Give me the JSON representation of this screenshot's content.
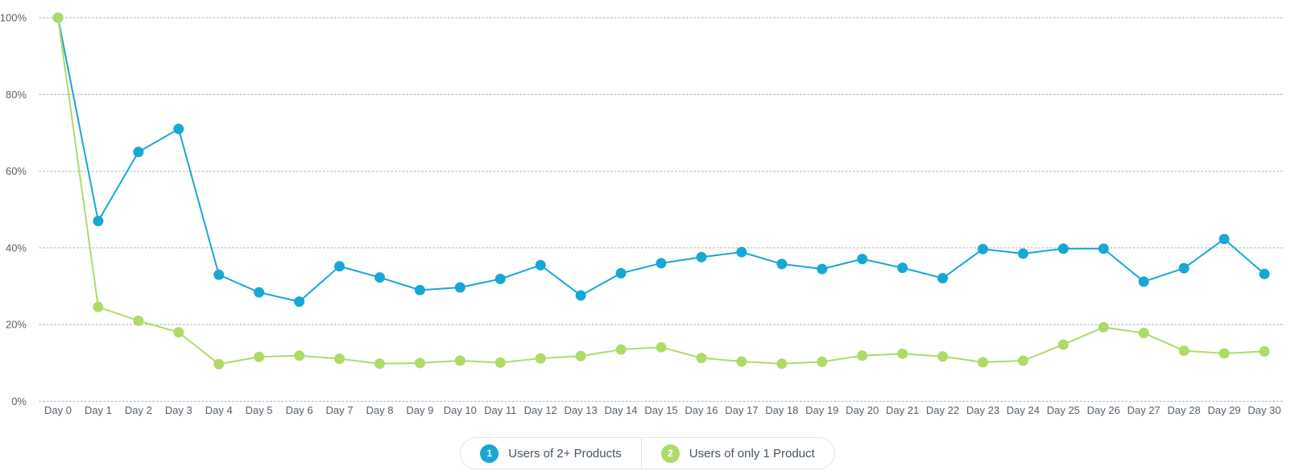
{
  "chart_data": {
    "type": "line",
    "title": "",
    "xlabel": "",
    "ylabel": "",
    "ylim": [
      0,
      100
    ],
    "y_ticks": [
      0,
      20,
      40,
      60,
      80,
      100
    ],
    "y_tick_labels": [
      "0%",
      "20%",
      "40%",
      "60%",
      "80%",
      "100%"
    ],
    "grid": "horizontal-dotted",
    "legend_position": "bottom-center",
    "categories": [
      "Day 0",
      "Day 1",
      "Day 2",
      "Day 3",
      "Day 4",
      "Day 5",
      "Day 6",
      "Day 7",
      "Day 8",
      "Day 9",
      "Day 10",
      "Day 11",
      "Day 12",
      "Day 13",
      "Day 14",
      "Day 15",
      "Day 16",
      "Day 17",
      "Day 18",
      "Day 19",
      "Day 20",
      "Day 21",
      "Day 22",
      "Day 23",
      "Day 24",
      "Day 25",
      "Day 26",
      "Day 27",
      "Day 28",
      "Day 29",
      "Day 30"
    ],
    "series": [
      {
        "name": "Users of 2+ Products",
        "color": "#17A7D7",
        "values": [
          100,
          47,
          65,
          71,
          33,
          28.4,
          26,
          35.2,
          32.3,
          29,
          29.7,
          31.9,
          35.5,
          27.6,
          33.4,
          36,
          37.6,
          38.9,
          35.8,
          34.5,
          37.1,
          34.8,
          32.1,
          39.7,
          38.5,
          39.8,
          39.8,
          31.2,
          34.7,
          42.3,
          33.2
        ]
      },
      {
        "name": "Users of only 1 Product",
        "color": "#AEDB68",
        "values": [
          100,
          24.6,
          21,
          18,
          9.7,
          11.6,
          11.9,
          11.1,
          9.8,
          10,
          10.6,
          10.1,
          11.2,
          11.8,
          13.5,
          14.1,
          11.3,
          10.4,
          9.8,
          10.3,
          11.9,
          12.4,
          11.7,
          10.2,
          10.6,
          14.8,
          19.3,
          17.8,
          13.2,
          12.5,
          13
        ]
      }
    ]
  },
  "legend": {
    "items": [
      {
        "index": "1",
        "label": "Users of 2+ Products",
        "color": "#17A7D7"
      },
      {
        "index": "2",
        "label": "Users of only 1 Product",
        "color": "#AEDB68"
      }
    ]
  },
  "colors": {
    "axis_label": "#55626E",
    "gridline": "#BCBCBC",
    "legend_border": "#E3E3E3",
    "legend_text": "#465564"
  }
}
